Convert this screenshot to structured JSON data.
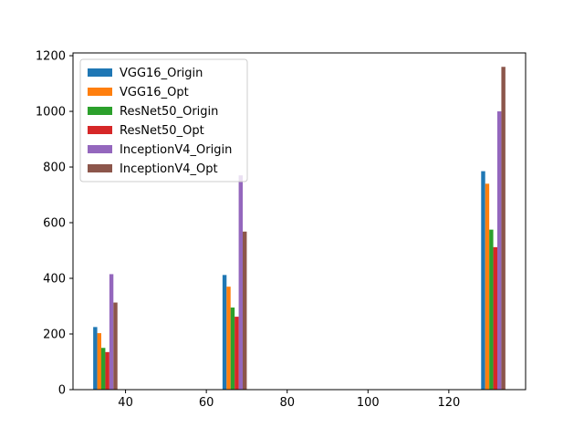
{
  "chart_data": {
    "type": "bar",
    "title": "",
    "xlabel": "",
    "ylabel": "",
    "x": [
      32,
      64,
      128
    ],
    "xlim": [
      27,
      139
    ],
    "ylim": [
      0,
      1210
    ],
    "xticks": [
      40,
      60,
      80,
      100,
      120
    ],
    "yticks": [
      0,
      200,
      400,
      600,
      800,
      1000,
      1200
    ],
    "bar_width": 1,
    "grid": false,
    "legend_position": "upper-left",
    "series": [
      {
        "name": "VGG16_Origin",
        "color": "#1f77b4",
        "values": [
          225,
          412,
          785
        ]
      },
      {
        "name": "VGG16_Opt",
        "color": "#ff7f0e",
        "values": [
          203,
          370,
          740
        ]
      },
      {
        "name": "ResNet50_Origin",
        "color": "#2ca02c",
        "values": [
          150,
          295,
          575
        ]
      },
      {
        "name": "ResNet50_Opt",
        "color": "#d62728",
        "values": [
          135,
          262,
          512
        ]
      },
      {
        "name": "InceptionV4_Origin",
        "color": "#9467bd",
        "values": [
          415,
          770,
          1000
        ]
      },
      {
        "name": "InceptionV4_Opt",
        "color": "#8c564b",
        "values": [
          313,
          568,
          1160
        ]
      }
    ]
  }
}
